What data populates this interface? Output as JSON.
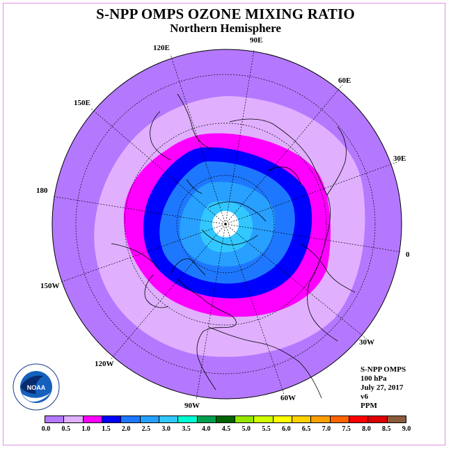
{
  "header": {
    "title": "S-NPP OMPS OZONE MIXING RATIO",
    "subtitle": "Northern Hemisphere"
  },
  "map": {
    "projection": "north polar stereographic",
    "longitude_labels": [
      "90E",
      "60E",
      "30E",
      "0",
      "30W",
      "60W",
      "90W",
      "120W",
      "150W",
      "180",
      "150E",
      "120E"
    ],
    "ozone_bands_ppm": [
      {
        "level": "0.5-1.0",
        "color": "#e0b0ff"
      },
      {
        "level": "1.0-1.5",
        "color": "#ff00ff"
      },
      {
        "level": "1.5-2.0",
        "color": "#0000ff"
      },
      {
        "level": "2.0-2.5",
        "color": "#1e78ff"
      },
      {
        "level": "2.5-3.0",
        "color": "#28a0ff"
      },
      {
        "level": "3.0-3.5",
        "color": "#32c8ff"
      }
    ],
    "background_level_color": "#b478ff"
  },
  "info": {
    "instrument": "S-NPP OMPS",
    "pressure": "100 hPa",
    "date": "July 27, 2017",
    "version": "v6",
    "units": "PPM"
  },
  "colorbar": {
    "colors": [
      "#b478ff",
      "#e0b0ff",
      "#ff00ff",
      "#0000ff",
      "#1e78ff",
      "#28a0ff",
      "#32c8ff",
      "#00ffd0",
      "#00a050",
      "#006400",
      "#96e600",
      "#d0ff00",
      "#ffff00",
      "#ffd200",
      "#ffa000",
      "#ff6400",
      "#ff0000",
      "#dc0000",
      "#8c5a3c"
    ],
    "ticks": [
      "0.0",
      "0.5",
      "1.0",
      "1.5",
      "2.0",
      "2.5",
      "3.0",
      "3.5",
      "4.0",
      "4.5",
      "5.0",
      "5.5",
      "6.0",
      "6.5",
      "7.0",
      "7.5",
      "8.0",
      "8.5",
      "9.0"
    ]
  },
  "logo": {
    "name": "NOAA",
    "ring_text": "NATIONAL OCEANIC AND ATMOSPHERIC ADMINISTRATION · U.S. DEPARTMENT OF COMMERCE"
  }
}
